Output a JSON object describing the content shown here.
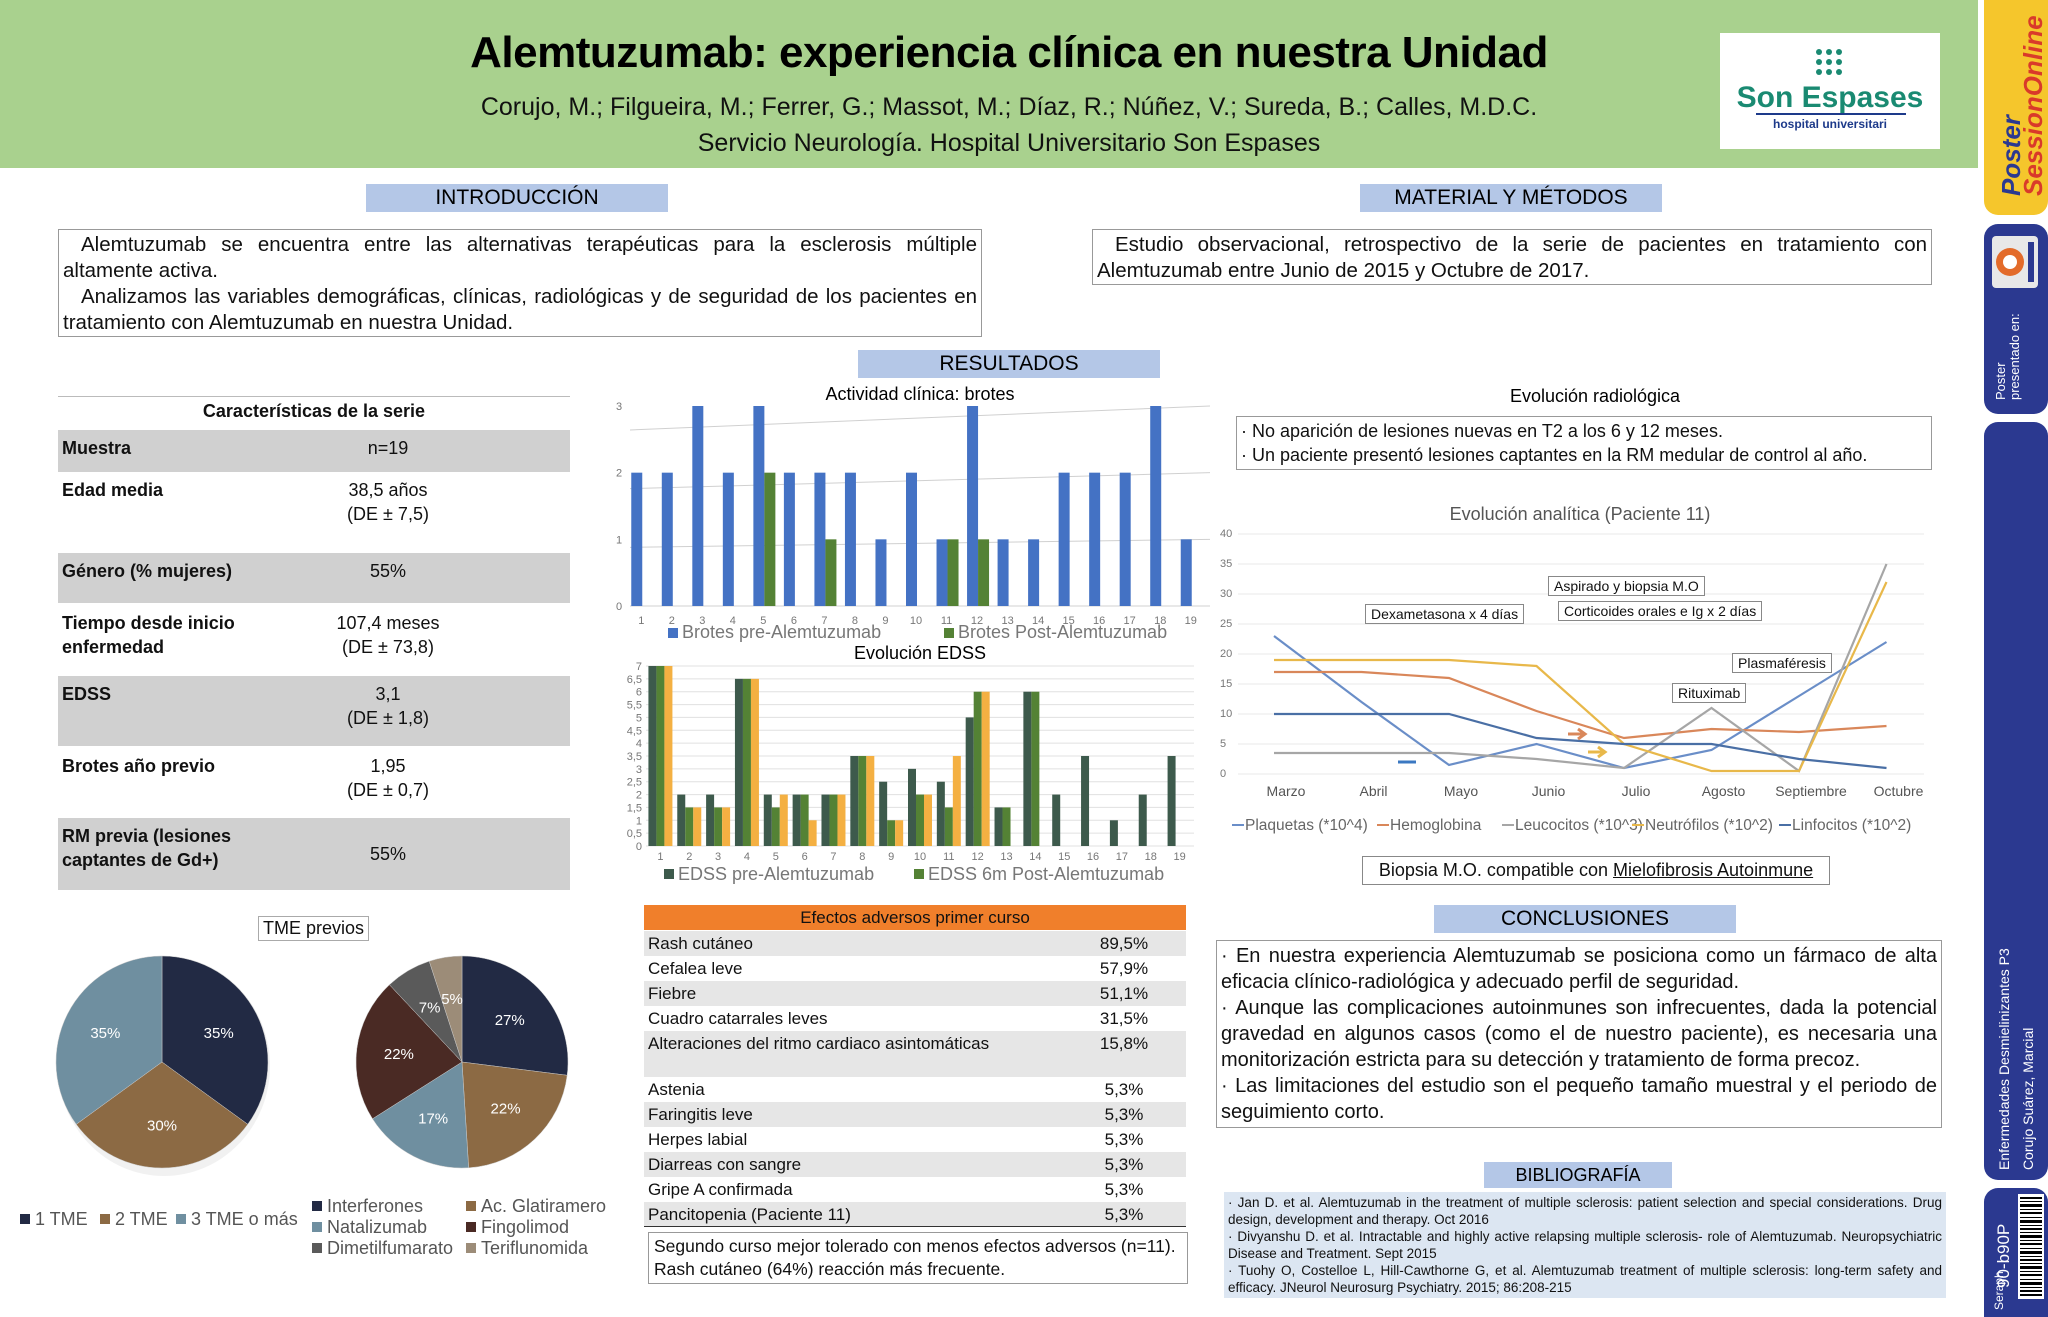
{
  "header": {
    "title": "Alemtuzumab: experiencia clínica en nuestra Unidad",
    "authors": "Corujo, M.; Filgueira, M.; Ferrer, G.; Massot, M.; Díaz, R.; Núñez, V.; Sureda, B.; Calles, M.D.C.",
    "affiliation": "Servicio Neurología. Hospital Universitario Son Espases",
    "logo_name": "Son Espases",
    "logo_sub": "hospital universitari"
  },
  "strip": {
    "brand": "Poster",
    "brand2": "SessionOnline",
    "presented": "Poster presentado en:",
    "category": "Enfermedades Desmielinizantes P3",
    "author": "Corujo Suárez, Marcial",
    "code": "90-b90P",
    "seraph": "Seraph"
  },
  "intro": {
    "heading": "INTRODUCCIÓN",
    "p1": "Alemtuzumab se encuentra entre las alternativas terapéuticas para la esclerosis múltiple altamente activa.",
    "p2": "Analizamos las variables demográficas, clínicas, radiológicas y de seguridad de los pacientes en tratamiento con Alemtuzumab en nuestra Unidad."
  },
  "methods": {
    "heading": "MATERIAL Y MÉTODOS",
    "p1": "Estudio observacional, retrospectivo de la serie de pacientes en tratamiento con Alemtuzumab entre Junio de 2015 y Octubre de 2017."
  },
  "results": {
    "heading": "RESULTADOS"
  },
  "characteristics": {
    "title": "Características de la serie",
    "rows": [
      {
        "label": "Muestra",
        "value": "n=19",
        "value2": ""
      },
      {
        "label": "Edad media",
        "value": "38,5 años",
        "value2": "(DE ± 7,5)"
      },
      {
        "label": "Género (% mujeres)",
        "value": "55%",
        "value2": ""
      },
      {
        "label": "Tiempo desde inicio",
        "label2": "enfermedad",
        "value": "107,4 meses",
        "value2": "(DE ± 73,8)"
      },
      {
        "label": "EDSS",
        "value": "3,1",
        "value2": "(DE ± 1,8)"
      },
      {
        "label": "Brotes año previo",
        "value": "1,95",
        "value2": "(DE ± 0,7)"
      },
      {
        "label": "RM previa (lesiones",
        "label2": "captantes de Gd+)",
        "value": "55%",
        "value2": ""
      }
    ]
  },
  "tme": {
    "title": "TME previos",
    "legend1": [
      "1 TME",
      "2 TME",
      "3 TME o más"
    ],
    "legend2": [
      "Interferones",
      "Ac. Glatiramero",
      "Natalizumab",
      "Fingolimod",
      "Dimetilfumarato",
      "Teriflunomida"
    ]
  },
  "adverse": {
    "heading": "Efectos adversos primer curso",
    "rows": [
      {
        "name": "Rash cutáneo",
        "pct": "89,5%"
      },
      {
        "name": "Cefalea leve",
        "pct": "57,9%"
      },
      {
        "name": "Fiebre",
        "pct": "51,1%"
      },
      {
        "name": "Cuadro catarrales leves",
        "pct": "31,5%"
      },
      {
        "name": "Alteraciones del ritmo cardiaco asintomáticas",
        "pct": "15,8%"
      },
      {
        "name": "Astenia",
        "pct": "5,3%"
      },
      {
        "name": "Faringitis leve",
        "pct": "5,3%"
      },
      {
        "name": "Herpes labial",
        "pct": "5,3%"
      },
      {
        "name": "Diarreas con sangre",
        "pct": "5,3%"
      },
      {
        "name": "Gripe A confirmada",
        "pct": "5,3%"
      },
      {
        "name": "Pancitopenia (Paciente 11)",
        "pct": "5,3%"
      }
    ],
    "second_course": "Segundo curso mejor tolerado con menos efectos adversos (n=11). Rash cutáneo (64%) reacción más frecuente."
  },
  "radio": {
    "title": "Evolución radiológica",
    "l1": "· No aparición de lesiones nuevas en T2 a los 6 y 12 meses.",
    "l2": "· Un paciente presentó lesiones captantes en la RM medular de control al año."
  },
  "annotations": {
    "dexa": "Dexametasona x 4 días",
    "aspirado": "Aspirado y biopsia M.O",
    "cortico": "Corticoides orales e Ig x 2 días",
    "plasma": "Plasmaféresis",
    "ritux": "Rituximab"
  },
  "biopsy": {
    "prefix": "Biopsia M.O. compatible con ",
    "emph": "Mielofibrosis Autoinmune"
  },
  "conclusions": {
    "heading": "CONCLUSIONES",
    "p1": "·  En nuestra experiencia Alemtuzumab se posiciona como un fármaco de alta eficacia clínico-radiológica y adecuado perfil de seguridad.",
    "p2": "· Aunque las complicaciones autoinmunes son infrecuentes, dada la potencial gravedad en algunos casos (como el de nuestro paciente), es necesaria una monitorización estricta para su detección y tratamiento de forma precoz.",
    "p3": "· Las limitaciones del estudio son el pequeño tamaño muestral y el periodo de seguimiento corto."
  },
  "bibliography": {
    "heading": "BIBLIOGRAFÍA",
    "refs": [
      "·      Jan D. et al. Alemtuzumab in the treatment of multiple sclerosis: patient selection and special considerations. Drug design, development and therapy. Oct 2016",
      "·      Divyanshu D. et al. Intractable and highly active relapsing multiple sclerosis- role of Alemtuzumab. Neuropsychiatric Disease and Treatment. Sept 2015",
      "·      Tuohy O, Costelloe L, Hill-Cawthorne G, et al. Alemtuzumab treatment of multiple sclerosis: long-term safety and efficacy. JNeurol Neurosurg Psychiatry. 2015; 86:208-215"
    ]
  },
  "chart_data": [
    {
      "type": "bar",
      "title": "Actividad clínica: brotes",
      "categories": [
        "1",
        "2",
        "3",
        "4",
        "5",
        "6",
        "7",
        "8",
        "9",
        "10",
        "11",
        "12",
        "13",
        "14",
        "15",
        "16",
        "17",
        "18",
        "19"
      ],
      "series": [
        {
          "name": "Brotes pre-Alemtuzumab",
          "color": "#4472c4",
          "values": [
            2,
            2,
            3,
            2,
            3,
            2,
            2,
            2,
            1,
            2,
            1,
            3,
            1,
            1,
            2,
            2,
            2,
            3,
            1
          ]
        },
        {
          "name": "Brotes Post-Alemtuzumab",
          "color": "#548235",
          "values": [
            0,
            0,
            0,
            0,
            2,
            0,
            1,
            0,
            0,
            0,
            1,
            1,
            0,
            0,
            0,
            0,
            0,
            0,
            0
          ]
        }
      ],
      "ylim": [
        0,
        3
      ],
      "yticks": [
        "0",
        "1",
        "2",
        "3"
      ]
    },
    {
      "type": "bar",
      "title": "Evolución EDSS",
      "categories": [
        "1",
        "2",
        "3",
        "4",
        "5",
        "6",
        "7",
        "8",
        "9",
        "10",
        "11",
        "12",
        "13",
        "14",
        "15",
        "16",
        "17",
        "18",
        "19"
      ],
      "series": [
        {
          "name": "EDSS pre-Alemtuzumab",
          "color": "#3d5a4c",
          "values": [
            7,
            2,
            2,
            6.5,
            2,
            2,
            2,
            3.5,
            2.5,
            3,
            2.5,
            5,
            1.5,
            6,
            2,
            3.5,
            1,
            2,
            3.5
          ]
        },
        {
          "name": "EDSS 6m Post-Alemtuzumab",
          "color": "#548235",
          "values": [
            7,
            1.5,
            1.5,
            6.5,
            1.5,
            2,
            2,
            3.5,
            1,
            2,
            1.5,
            6,
            1.5,
            6,
            0,
            0,
            0,
            0,
            0
          ]
        },
        {
          "name": "",
          "color": "#f4b042",
          "values": [
            7,
            1.5,
            1.5,
            6.5,
            2,
            1,
            2,
            3.5,
            1,
            2,
            3.5,
            6,
            0,
            0,
            0,
            0,
            0,
            0,
            0
          ]
        }
      ],
      "ylim": [
        0,
        7
      ],
      "yticks": [
        "0",
        "0,5",
        "1",
        "1,5",
        "2",
        "2,5",
        "3",
        "3,5",
        "4",
        "4,5",
        "5",
        "5,5",
        "6",
        "6,5",
        "7"
      ]
    },
    {
      "type": "line",
      "title": "Evolución analítica (Paciente 11)",
      "categories": [
        "Marzo",
        "Abril",
        "Mayo",
        "Junio",
        "Julio",
        "Agosto",
        "Septiembre",
        "Octubre"
      ],
      "series": [
        {
          "name": "Plaquetas (*10^4)",
          "color": "#6a8ec8",
          "values": [
            23,
            12,
            1.5,
            5,
            1,
            4,
            13,
            22
          ]
        },
        {
          "name": "Hemoglobina",
          "color": "#d9875a",
          "values": [
            17,
            17,
            16,
            10.5,
            6,
            7.5,
            7,
            8
          ]
        },
        {
          "name": "Leucocitos (*10^3)",
          "color": "#a6a6a6",
          "values": [
            3.5,
            3.5,
            3.5,
            2.5,
            1,
            11,
            0.5,
            35
          ]
        },
        {
          "name": "Neutrófilos (*10^2)",
          "color": "#e8b84a",
          "values": [
            19,
            19,
            19,
            18,
            5,
            0.5,
            0.5,
            32
          ]
        },
        {
          "name": "Linfocitos (*10^2)",
          "color": "#4a6fa5",
          "values": [
            10,
            10,
            10,
            6,
            5,
            5,
            2.5,
            1
          ]
        }
      ],
      "ylim": [
        0,
        40
      ]
    },
    {
      "type": "pie",
      "title": "TME previos",
      "labels": [
        "1 TME",
        "2 TME",
        "3 TME o más"
      ],
      "values": [
        35,
        30,
        35
      ],
      "colors": [
        "#222a44",
        "#8c6a44",
        "#6f8fa0"
      ]
    },
    {
      "type": "pie",
      "labels": [
        "Interferones",
        "Ac. Glatiramero",
        "Natalizumab",
        "Fingolimod",
        "Dimetilfumarato",
        "Teriflunomida"
      ],
      "values": [
        27,
        22,
        17,
        22,
        7,
        5
      ],
      "colors": [
        "#222a44",
        "#8c6a44",
        "#6f8fa0",
        "#4a2a24",
        "#5a5a5a",
        "#9c8c78"
      ]
    }
  ]
}
